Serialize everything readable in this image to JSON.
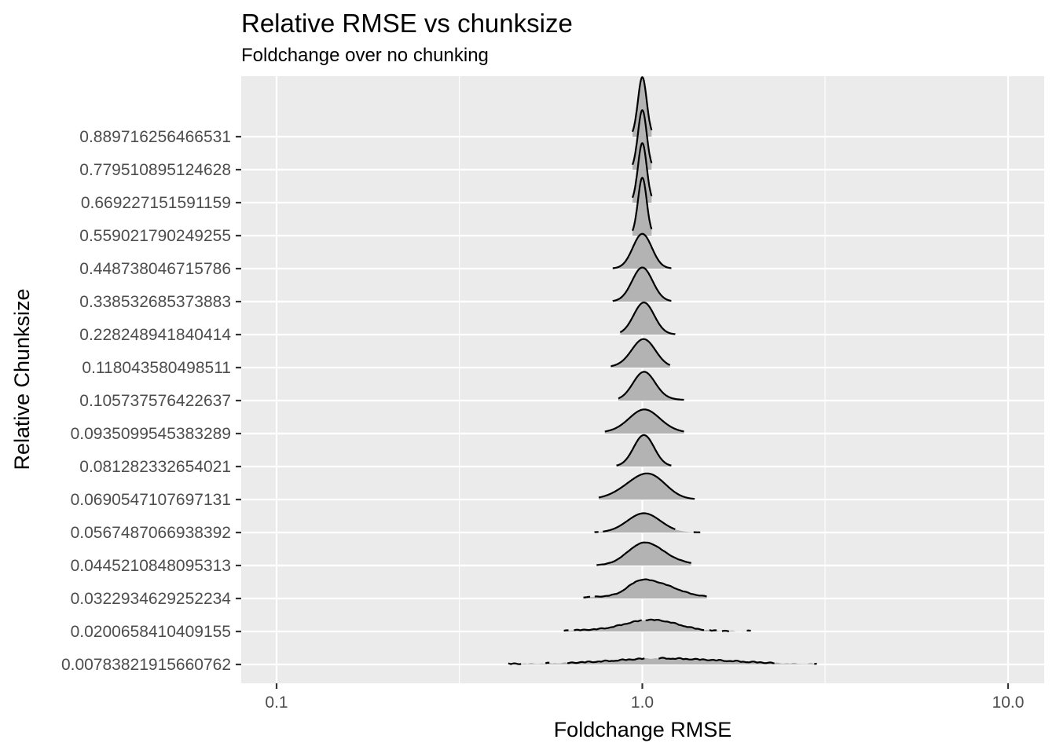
{
  "chart_data": {
    "type": "ridgeline",
    "title": "Relative RMSE vs chunksize",
    "subtitle": "Foldchange over no chunking",
    "xlabel": "Foldchange RMSE",
    "ylabel": "Relative Chunksize",
    "x_scale": "log10",
    "xlim": [
      0.08,
      15
    ],
    "x_ticks": [
      {
        "value": 0.1,
        "label": "0.1"
      },
      {
        "value": 1.0,
        "label": "1.0"
      },
      {
        "value": 10.0,
        "label": "10.0"
      }
    ],
    "x_minor_ticks": [
      0.316,
      3.16
    ],
    "grid": true,
    "panel_color": "#ebebeb",
    "fill_color": "#b3b3b3",
    "line_color": "#000000",
    "categories": [
      "0.00783821915660762",
      "0.0200658410409155",
      "0.0322934629252234",
      "0.0445210848095313",
      "0.0567487066938392",
      "0.0690547107697131",
      "0.081282332654021",
      "0.0935099545383289",
      "0.105737576422637",
      "0.118043580498511",
      "0.228248941840414",
      "0.338532685373883",
      "0.448738046715786",
      "0.559021790249255",
      "0.669227151591159",
      "0.779510895124628",
      "0.889716256466531"
    ],
    "distributions": [
      {
        "range": [
          0.43,
          3.0
        ],
        "segments": [
          [
            0.43,
            0.47
          ],
          [
            0.54,
            0.56
          ],
          [
            0.62,
            1.02
          ],
          [
            1.1,
            2.3
          ],
          [
            2.95,
            3.02
          ]
        ],
        "peaks": [
          {
            "center": 1.3,
            "height": 0.13,
            "width": 0.14
          },
          {
            "center": 0.85,
            "height": 0.04,
            "width": 0.12
          },
          {
            "center": 1.05,
            "height": 0.03,
            "width": 0.06
          }
        ]
      },
      {
        "range": [
          0.61,
          1.98
        ],
        "segments": [
          [
            0.61,
            0.63
          ],
          [
            0.65,
            1.0
          ],
          [
            1.02,
            1.48
          ],
          [
            1.52,
            1.6
          ],
          [
            1.65,
            1.73
          ],
          [
            1.93,
            2.0
          ]
        ],
        "peaks": [
          {
            "center": 1.12,
            "height": 0.26,
            "width": 0.06
          },
          {
            "center": 0.95,
            "height": 0.12,
            "width": 0.05
          },
          {
            "center": 0.82,
            "height": 0.04,
            "width": 0.1
          }
        ]
      },
      {
        "range": [
          0.69,
          1.5
        ],
        "segments": [
          [
            0.69,
            0.72
          ],
          [
            0.74,
            1.5
          ]
        ],
        "peaks": [
          {
            "center": 1.08,
            "height": 0.33,
            "width": 0.05
          },
          {
            "center": 0.97,
            "height": 0.22,
            "width": 0.03
          },
          {
            "center": 1.2,
            "height": 0.12,
            "width": 0.07
          },
          {
            "center": 0.85,
            "height": 0.05,
            "width": 0.08
          }
        ]
      },
      {
        "range": [
          0.75,
          1.36
        ],
        "segments": [
          [
            0.75,
            1.36
          ]
        ],
        "peaks": [
          {
            "center": 1.04,
            "height": 0.4,
            "width": 0.045
          },
          {
            "center": 0.97,
            "height": 0.25,
            "width": 0.04
          },
          {
            "center": 1.15,
            "height": 0.12,
            "width": 0.06
          }
        ]
      },
      {
        "range": [
          0.74,
          1.44
        ],
        "segments": [
          [
            0.74,
            0.76
          ],
          [
            0.78,
            1.23
          ],
          [
            1.38,
            1.44
          ]
        ],
        "peaks": [
          {
            "center": 1.01,
            "height": 0.58,
            "width": 0.045
          }
        ]
      },
      {
        "range": [
          0.76,
          1.39
        ],
        "segments": [
          [
            0.76,
            1.39
          ]
        ],
        "peaks": [
          {
            "center": 1.0,
            "height": 0.5,
            "width": 0.05
          },
          {
            "center": 1.08,
            "height": 0.3,
            "width": 0.04
          },
          {
            "center": 0.9,
            "height": 0.08,
            "width": 0.05
          }
        ]
      },
      {
        "range": [
          0.85,
          1.2
        ],
        "segments": [
          [
            0.85,
            1.2
          ]
        ],
        "peaks": [
          {
            "center": 1.01,
            "height": 0.95,
            "width": 0.028
          }
        ]
      },
      {
        "range": [
          0.79,
          1.3
        ],
        "segments": [
          [
            0.79,
            1.3
          ]
        ],
        "peaks": [
          {
            "center": 1.01,
            "height": 0.63,
            "width": 0.04
          },
          {
            "center": 1.12,
            "height": 0.1,
            "width": 0.05
          },
          {
            "center": 0.88,
            "height": 0.06,
            "width": 0.05
          }
        ]
      },
      {
        "range": [
          0.86,
          1.3
        ],
        "segments": [
          [
            0.86,
            1.3
          ]
        ],
        "peaks": [
          {
            "center": 1.01,
            "height": 0.83,
            "width": 0.03
          },
          {
            "center": 1.1,
            "height": 0.05,
            "width": 0.05
          }
        ]
      },
      {
        "range": [
          0.82,
          1.19
        ],
        "segments": [
          [
            0.82,
            1.19
          ]
        ],
        "peaks": [
          {
            "center": 1.01,
            "height": 0.83,
            "width": 0.032
          },
          {
            "center": 0.92,
            "height": 0.05,
            "width": 0.04
          }
        ]
      },
      {
        "range": [
          0.87,
          1.23
        ],
        "segments": [
          [
            0.87,
            1.23
          ]
        ],
        "peaks": [
          {
            "center": 1.01,
            "height": 0.97,
            "width": 0.028
          }
        ]
      },
      {
        "range": [
          0.83,
          1.2
        ],
        "segments": [
          [
            0.83,
            1.2
          ]
        ],
        "peaks": [
          {
            "center": 1.0,
            "height": 1.03,
            "width": 0.028
          }
        ]
      },
      {
        "range": [
          0.83,
          1.2
        ],
        "segments": [
          [
            0.83,
            1.2
          ]
        ],
        "peaks": [
          {
            "center": 1.0,
            "height": 1.05,
            "width": 0.026
          }
        ]
      },
      {
        "range": [
          0.94,
          1.06
        ],
        "segments": [
          [
            0.94,
            1.06
          ]
        ],
        "peaks": [
          {
            "center": 1.0,
            "height": 1.75,
            "width": 0.012
          }
        ]
      },
      {
        "range": [
          0.94,
          1.06
        ],
        "segments": [
          [
            0.94,
            1.06
          ]
        ],
        "peaks": [
          {
            "center": 1.0,
            "height": 1.8,
            "width": 0.012
          }
        ]
      },
      {
        "range": [
          0.94,
          1.06
        ],
        "segments": [
          [
            0.94,
            1.06
          ]
        ],
        "peaks": [
          {
            "center": 1.0,
            "height": 1.8,
            "width": 0.012
          }
        ]
      },
      {
        "range": [
          0.94,
          1.06
        ],
        "segments": [
          [
            0.94,
            1.06
          ]
        ],
        "peaks": [
          {
            "center": 1.0,
            "height": 1.8,
            "width": 0.012
          }
        ]
      }
    ]
  }
}
